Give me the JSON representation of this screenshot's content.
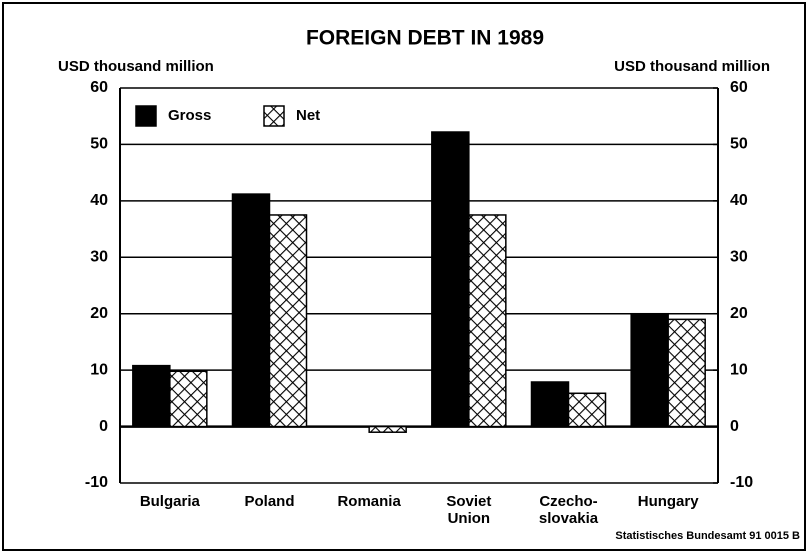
{
  "chart_data": {
    "type": "bar",
    "title": "FOREIGN DEBT IN 1989",
    "y_label": "USD thousand million",
    "y2_label": "USD thousand million",
    "source": "Statistisches Bundesamt 91 0015 B",
    "categories": [
      "Bulgaria",
      "Poland",
      "Romania",
      "Soviet Union",
      "Czecho-slovakia",
      "Hungary"
    ],
    "series": [
      {
        "name": "Gross",
        "color": "#000000",
        "values": [
          10.8,
          41.2,
          0,
          52.2,
          7.9,
          20
        ]
      },
      {
        "name": "Net",
        "color": "#000000",
        "pattern": "crosshatch",
        "values": [
          9.8,
          37.5,
          -1,
          37.5,
          5.9,
          19
        ]
      }
    ],
    "ylim": [
      -10,
      60
    ],
    "yticks": [
      -10,
      0,
      10,
      20,
      30,
      40,
      50,
      60
    ],
    "y2lim": [
      -10,
      60
    ],
    "y2ticks": [
      -10,
      0,
      10,
      20,
      30,
      40,
      50,
      60
    ],
    "grid": true,
    "legend": "upper left"
  }
}
